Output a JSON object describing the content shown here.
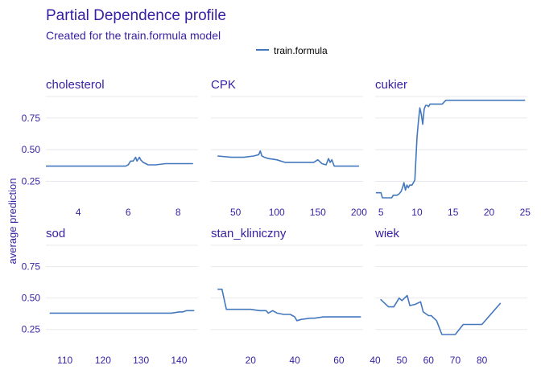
{
  "title": "Partial Dependence profile",
  "subtitle": "Created for the train.formula model",
  "colors": {
    "text": "#371ea3",
    "line": "#4378bf",
    "grid": "#e8e8ee"
  },
  "chart_data": {
    "type": "line",
    "title": "Partial Dependence profile",
    "subtitle": "Created for the train.formula model",
    "ylabel": "average prediction",
    "legend": {
      "entries": [
        "train.formula"
      ],
      "placement": "top"
    },
    "grid": true,
    "shared_y": {
      "ylim": [
        0.05,
        0.92
      ],
      "ticks": [
        0.25,
        0.5,
        0.75
      ],
      "tick_labels": [
        "0.25",
        "0.50",
        "0.75"
      ]
    },
    "panels": [
      {
        "name": "cholesterol",
        "xlim": [
          2.7,
          8.8
        ],
        "xticks": [
          4,
          6,
          8
        ],
        "series": [
          {
            "name": "train.formula",
            "x": [
              2.7,
              5.9,
              6.0,
              6.1,
              6.2,
              6.3,
              6.35,
              6.45,
              6.5,
              6.6,
              6.8,
              7.1,
              7.5,
              8.0,
              8.6
            ],
            "y": [
              0.37,
              0.37,
              0.38,
              0.41,
              0.41,
              0.44,
              0.41,
              0.44,
              0.42,
              0.4,
              0.38,
              0.38,
              0.39,
              0.39,
              0.39
            ]
          }
        ]
      },
      {
        "name": "CPK",
        "xlim": [
          20,
          205
        ],
        "xticks": [
          50,
          100,
          150,
          200
        ],
        "series": [
          {
            "name": "train.formula",
            "x": [
              28,
              45,
              60,
              72,
              78,
              80,
              82,
              85,
              90,
              100,
              110,
              130,
              145,
              150,
              155,
              160,
              163,
              165,
              167,
              170,
              200
            ],
            "y": [
              0.45,
              0.44,
              0.44,
              0.45,
              0.46,
              0.49,
              0.45,
              0.44,
              0.43,
              0.42,
              0.4,
              0.4,
              0.4,
              0.42,
              0.39,
              0.38,
              0.43,
              0.4,
              0.42,
              0.37,
              0.37
            ]
          }
        ]
      },
      {
        "name": "cukier",
        "xlim": [
          4.2,
          25.3
        ],
        "xticks": [
          5,
          10,
          15,
          20,
          25
        ],
        "series": [
          {
            "name": "train.formula",
            "x": [
              4.3,
              5.0,
              5.2,
              6.5,
              6.7,
              7.2,
              7.5,
              7.8,
              8.0,
              8.2,
              8.4,
              8.6,
              8.8,
              9.0,
              9.3,
              9.5,
              9.7,
              10.0,
              10.2,
              10.4,
              10.6,
              10.8,
              11.0,
              11.2,
              11.4,
              11.6,
              11.8,
              13.5,
              14.0,
              25.0
            ],
            "y": [
              0.16,
              0.16,
              0.12,
              0.12,
              0.14,
              0.14,
              0.15,
              0.17,
              0.2,
              0.24,
              0.18,
              0.22,
              0.2,
              0.22,
              0.22,
              0.24,
              0.26,
              0.6,
              0.72,
              0.83,
              0.78,
              0.7,
              0.82,
              0.85,
              0.85,
              0.84,
              0.86,
              0.86,
              0.89,
              0.89
            ]
          }
        ]
      },
      {
        "name": "sod",
        "xlim": [
          105,
          145
        ],
        "xticks": [
          110,
          120,
          130,
          140
        ],
        "series": [
          {
            "name": "train.formula",
            "x": [
              106,
              136,
              138,
              140,
              141,
              142,
              144
            ],
            "y": [
              0.38,
              0.38,
              0.38,
              0.39,
              0.39,
              0.4,
              0.4
            ]
          }
        ]
      },
      {
        "name": "stan_kliniczny",
        "xlim": [
          2,
          71
        ],
        "xticks": [
          20,
          40,
          60
        ],
        "series": [
          {
            "name": "train.formula",
            "x": [
              5,
              7,
              9,
              20,
              24,
              27,
              28,
              30,
              32,
              35,
              38,
              40,
              41,
              43,
              47,
              49,
              53,
              70
            ],
            "y": [
              0.57,
              0.57,
              0.41,
              0.41,
              0.4,
              0.4,
              0.38,
              0.4,
              0.38,
              0.37,
              0.37,
              0.35,
              0.32,
              0.33,
              0.34,
              0.34,
              0.35,
              0.35
            ]
          }
        ]
      },
      {
        "name": "wiek",
        "xlim": [
          40,
          97
        ],
        "xticks": [
          40,
          50,
          60,
          70,
          80
        ],
        "series": [
          {
            "name": "train.formula",
            "x": [
              42,
              45,
              46,
              47,
              49,
              50,
              52,
              53,
              55,
              57,
              58,
              60,
              61,
              63,
              65,
              67,
              70,
              73,
              75,
              80,
              87
            ],
            "y": [
              0.49,
              0.43,
              0.43,
              0.43,
              0.5,
              0.48,
              0.52,
              0.44,
              0.45,
              0.47,
              0.39,
              0.36,
              0.36,
              0.32,
              0.21,
              0.21,
              0.21,
              0.29,
              0.29,
              0.29,
              0.46
            ]
          }
        ]
      }
    ]
  }
}
